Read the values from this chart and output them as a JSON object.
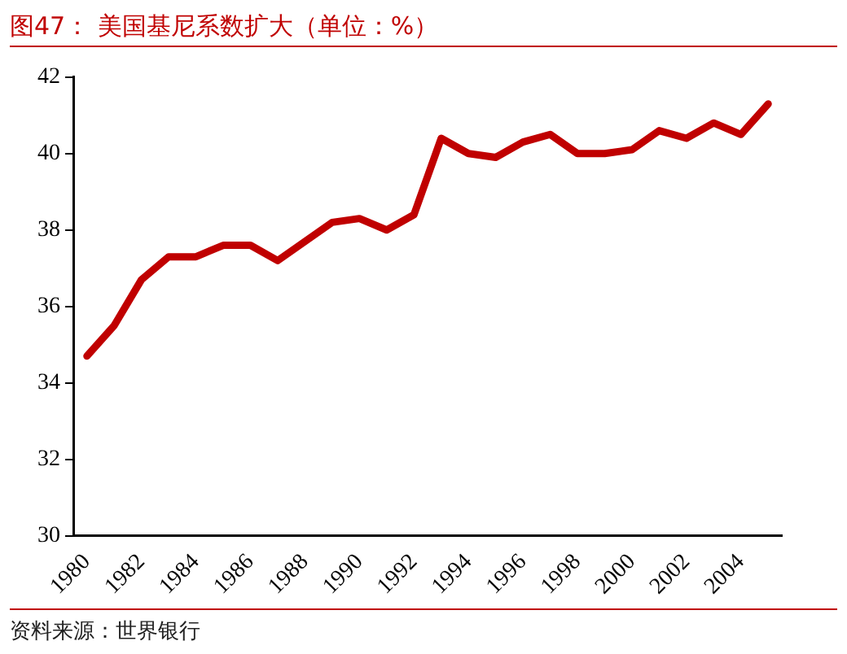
{
  "chart_data": {
    "type": "line",
    "title": "图47：  美国基尼系数扩大（单位：%）",
    "categories": [
      "1980",
      null,
      "1982",
      null,
      "1984",
      null,
      "1986",
      null,
      "1988",
      null,
      "1990",
      null,
      "1992",
      null,
      "1994",
      null,
      "1996",
      null,
      "1998",
      null,
      "2000",
      null,
      "2002",
      null,
      "2004",
      null
    ],
    "series": [
      {
        "color": "#c00000",
        "values": [
          34.7,
          35.5,
          36.7,
          37.3,
          37.3,
          37.6,
          37.6,
          37.2,
          37.7,
          38.2,
          38.3,
          38.0,
          38.4,
          40.4,
          40.0,
          39.9,
          40.3,
          40.5,
          40.0,
          40.0,
          40.1,
          40.6,
          40.4,
          40.8,
          40.5,
          41.3
        ]
      }
    ],
    "ylim": [
      30,
      42
    ],
    "yticks": [
      30,
      32,
      34,
      36,
      38,
      40,
      42
    ],
    "grid": false,
    "legend": false,
    "marker": "none",
    "line_style": "solid",
    "annotations": [
      "资料来源：世界银行"
    ]
  }
}
